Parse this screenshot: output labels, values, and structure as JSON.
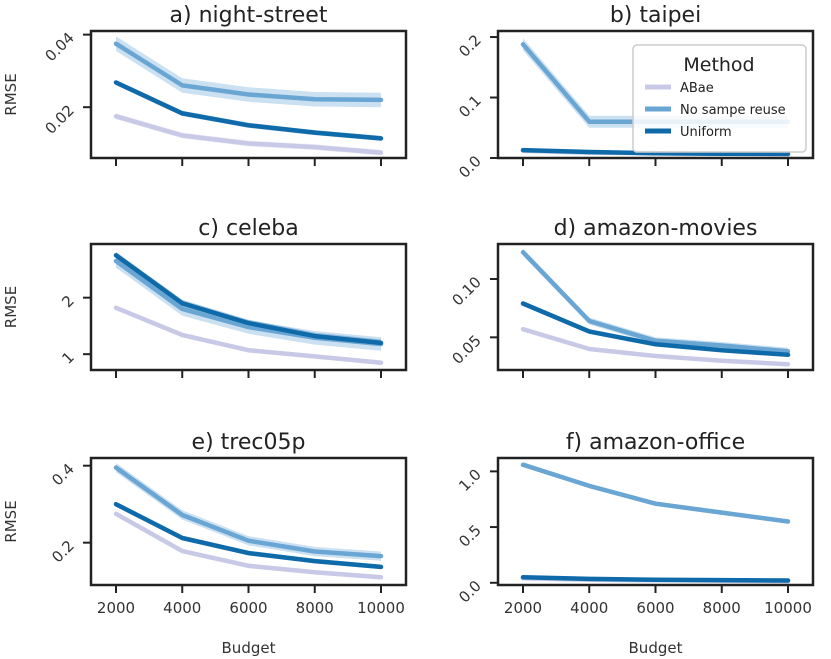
{
  "colors": {
    "ABae": "#c8c9e6",
    "No sampe reuse": "#6aa6d4",
    "Uniform": "#0f6aaa",
    "axis": "#222222"
  },
  "legend": {
    "title": "Method",
    "entries": [
      "ABae",
      "No sampe reuse",
      "Uniform"
    ],
    "location": "top-right of panel b"
  },
  "chart_data": [
    {
      "type": "line",
      "title": "a) night-street",
      "xlabel": "",
      "ylabel": "RMSE",
      "x": [
        2000,
        4000,
        6000,
        8000,
        10000
      ],
      "xticks": [
        "2000",
        "4000",
        "6000",
        "8000",
        "10000"
      ],
      "ylim": [
        0.006,
        0.041
      ],
      "yticks": [
        {
          "v": 0.02,
          "label": "0.02"
        },
        {
          "v": 0.04,
          "label": "0.04"
        }
      ],
      "series": [
        {
          "name": "ABae",
          "values": [
            0.0175,
            0.0122,
            0.01,
            0.009,
            0.0075
          ],
          "band": 0.0008
        },
        {
          "name": "No sampe reuse",
          "values": [
            0.0375,
            0.026,
            0.0235,
            0.0222,
            0.022
          ],
          "band": 0.002
        },
        {
          "name": "Uniform",
          "values": [
            0.0268,
            0.0183,
            0.015,
            0.013,
            0.0114
          ],
          "band": 0.0007
        }
      ]
    },
    {
      "type": "line",
      "title": "b) taipei",
      "xlabel": "",
      "ylabel": "",
      "x": [
        2000,
        4000,
        6000,
        8000,
        10000
      ],
      "xticks": [
        "2000",
        "4000",
        "6000",
        "8000",
        "10000"
      ],
      "ylim": [
        0.0,
        0.21
      ],
      "yticks": [
        {
          "v": 0.0,
          "label": "0.0"
        },
        {
          "v": 0.1,
          "label": "0.1"
        },
        {
          "v": 0.2,
          "label": "0.2"
        }
      ],
      "series": [
        {
          "name": "ABae",
          "values": [
            0.012,
            0.009,
            0.008,
            0.007,
            0.006
          ],
          "band": 0.001
        },
        {
          "name": "No sampe reuse",
          "values": [
            0.188,
            0.06,
            0.06,
            0.06,
            0.06
          ],
          "band": 0.01
        },
        {
          "name": "Uniform",
          "values": [
            0.013,
            0.01,
            0.008,
            0.007,
            0.007
          ],
          "band": 0.002
        }
      ]
    },
    {
      "type": "line",
      "title": "c) celeba",
      "xlabel": "",
      "ylabel": "RMSE",
      "x": [
        2000,
        4000,
        6000,
        8000,
        10000
      ],
      "xticks": [
        "2000",
        "4000",
        "6000",
        "8000",
        "10000"
      ],
      "ylim": [
        0.72,
        2.95
      ],
      "yticks": [
        {
          "v": 1,
          "label": "1"
        },
        {
          "v": 2,
          "label": "2"
        }
      ],
      "series": [
        {
          "name": "ABae",
          "values": [
            1.82,
            1.34,
            1.07,
            0.96,
            0.85
          ],
          "band": 0.04
        },
        {
          "name": "No sampe reuse",
          "values": [
            2.65,
            1.8,
            1.48,
            1.29,
            1.18
          ],
          "band": 0.12
        },
        {
          "name": "Uniform",
          "values": [
            2.75,
            1.9,
            1.55,
            1.32,
            1.2
          ],
          "band": 0.06
        }
      ]
    },
    {
      "type": "line",
      "title": "d) amazon-movies",
      "xlabel": "",
      "ylabel": "",
      "x": [
        2000,
        4000,
        6000,
        8000,
        10000
      ],
      "xticks": [
        "2000",
        "4000",
        "6000",
        "8000",
        "10000"
      ],
      "ylim": [
        0.022,
        0.13
      ],
      "yticks": [
        {
          "v": 0.05,
          "label": "0.05"
        },
        {
          "v": 0.1,
          "label": "0.10"
        }
      ],
      "series": [
        {
          "name": "ABae",
          "values": [
            0.057,
            0.04,
            0.034,
            0.03,
            0.027
          ],
          "band": 0.0015
        },
        {
          "name": "No sampe reuse",
          "values": [
            0.123,
            0.064,
            0.047,
            0.043,
            0.038
          ],
          "band": 0.003
        },
        {
          "name": "Uniform",
          "values": [
            0.079,
            0.055,
            0.044,
            0.039,
            0.035
          ],
          "band": 0.0015
        }
      ]
    },
    {
      "type": "line",
      "title": "e) trec05p",
      "xlabel": "Budget",
      "ylabel": "RMSE",
      "x": [
        2000,
        4000,
        6000,
        8000,
        10000
      ],
      "xticks": [
        "2000",
        "4000",
        "6000",
        "8000",
        "10000"
      ],
      "ylim": [
        0.09,
        0.42
      ],
      "yticks": [
        {
          "v": 0.2,
          "label": "0.2"
        },
        {
          "v": 0.4,
          "label": "0.4"
        }
      ],
      "series": [
        {
          "name": "ABae",
          "values": [
            0.275,
            0.178,
            0.14,
            0.123,
            0.11
          ],
          "band": 0.006
        },
        {
          "name": "No sampe reuse",
          "values": [
            0.395,
            0.272,
            0.205,
            0.177,
            0.165
          ],
          "band": 0.012
        },
        {
          "name": "Uniform",
          "values": [
            0.3,
            0.212,
            0.173,
            0.152,
            0.137
          ],
          "band": 0.006
        }
      ]
    },
    {
      "type": "line",
      "title": "f) amazon-office",
      "xlabel": "Budget",
      "ylabel": "",
      "x": [
        2000,
        4000,
        6000,
        8000,
        10000
      ],
      "xticks": [
        "2000",
        "4000",
        "6000",
        "8000",
        "10000"
      ],
      "ylim": [
        -0.02,
        1.12
      ],
      "yticks": [
        {
          "v": 0.0,
          "label": "0.0"
        },
        {
          "v": 0.5,
          "label": "0.5"
        },
        {
          "v": 1.0,
          "label": "1.0"
        }
      ],
      "series": [
        {
          "name": "ABae",
          "values": [
            0.04,
            0.028,
            0.022,
            0.018,
            0.015
          ],
          "band": 0.004
        },
        {
          "name": "No sampe reuse",
          "values": [
            1.06,
            0.87,
            0.71,
            0.63,
            0.55
          ],
          "band": 0.02
        },
        {
          "name": "Uniform",
          "values": [
            0.05,
            0.035,
            0.028,
            0.024,
            0.02
          ],
          "band": 0.004
        }
      ]
    }
  ]
}
